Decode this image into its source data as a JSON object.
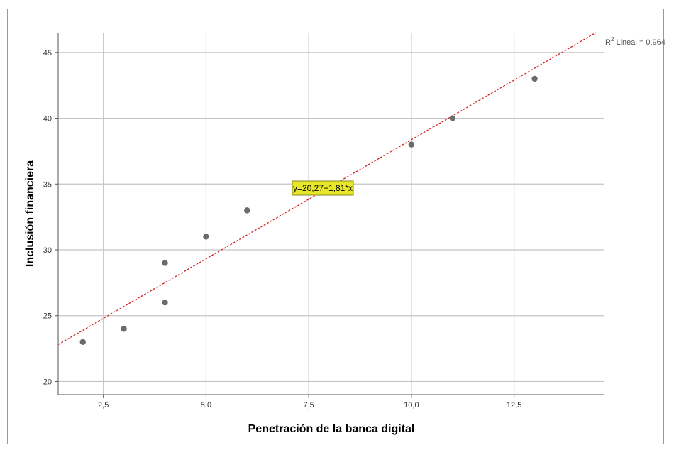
{
  "chart_data": {
    "type": "scatter",
    "xlabel": "Penetración de la banca digital",
    "ylabel": "Inclusión financiera",
    "xlim": [
      1.4,
      14.7
    ],
    "ylim": [
      19,
      46.5
    ],
    "xticks": [
      2.5,
      5.0,
      7.5,
      10.0,
      12.5
    ],
    "xtick_labels": [
      "2,5",
      "5,0",
      "7,5",
      "10,0",
      "12,5"
    ],
    "yticks": [
      20,
      25,
      30,
      35,
      40,
      45
    ],
    "ytick_labels": [
      "20",
      "25",
      "30",
      "35",
      "40",
      "45"
    ],
    "grid": true,
    "points": [
      {
        "x": 2,
        "y": 23
      },
      {
        "x": 3,
        "y": 24
      },
      {
        "x": 4,
        "y": 26
      },
      {
        "x": 4,
        "y": 29
      },
      {
        "x": 5,
        "y": 31
      },
      {
        "x": 6,
        "y": 33
      },
      {
        "x": 8,
        "y": 35
      },
      {
        "x": 10,
        "y": 38
      },
      {
        "x": 11,
        "y": 40
      },
      {
        "x": 13,
        "y": 43
      }
    ],
    "fit_line": {
      "intercept": 20.27,
      "slope": 1.81,
      "style": "dashed",
      "color": "#d62020"
    },
    "equation_label": "y=20,27+1,81*x",
    "r2_label": {
      "prefix": "R",
      "sup": "2",
      "text": " Lineal = 0,964"
    },
    "colors": {
      "point": "#6b6b6b",
      "grid": "#c4c4c4",
      "axis": "#555555",
      "label_box": "#e6e62a"
    }
  }
}
